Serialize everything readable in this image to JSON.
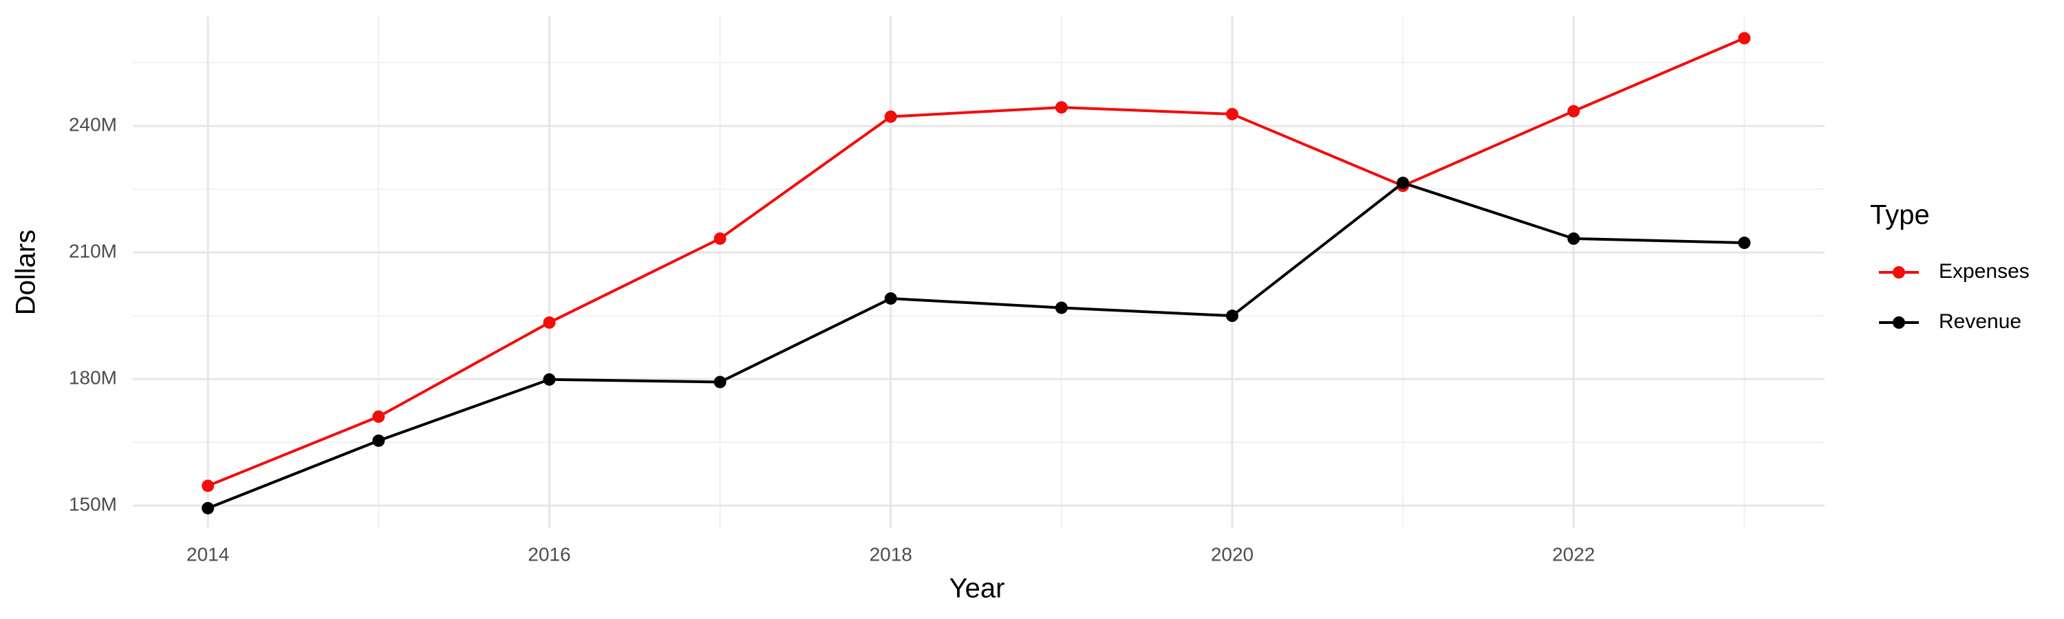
{
  "chart_data": {
    "type": "line",
    "x_label": "Year",
    "y_label": "Dollars",
    "legend_title": "Type",
    "x": [
      2014,
      2015,
      2016,
      2017,
      2018,
      2019,
      2020,
      2021,
      2022,
      2023
    ],
    "series": [
      {
        "name": "Expenses",
        "color": "#f20d0d",
        "values": [
          154700000,
          171100000,
          193400000,
          213300000,
          242200000,
          244400000,
          242800000,
          225800000,
          243500000,
          260800000
        ]
      },
      {
        "name": "Revenue",
        "color": "#000000",
        "values": [
          149400000,
          165400000,
          179900000,
          179300000,
          199100000,
          196900000,
          195000000,
          226500000,
          213300000,
          212300000
        ]
      }
    ],
    "xlim": [
      2013.56,
      2023.47
    ],
    "xticks": [
      2014,
      2016,
      2018,
      2020,
      2022
    ],
    "ylim": [
      144650000,
      266100000
    ],
    "yticks": [
      {
        "value": 150000000,
        "label": "150M"
      },
      {
        "value": 180000000,
        "label": "180M"
      },
      {
        "value": 210000000,
        "label": "210M"
      },
      {
        "value": 240000000,
        "label": "240M"
      }
    ],
    "grid": true,
    "legend_position": "right"
  }
}
